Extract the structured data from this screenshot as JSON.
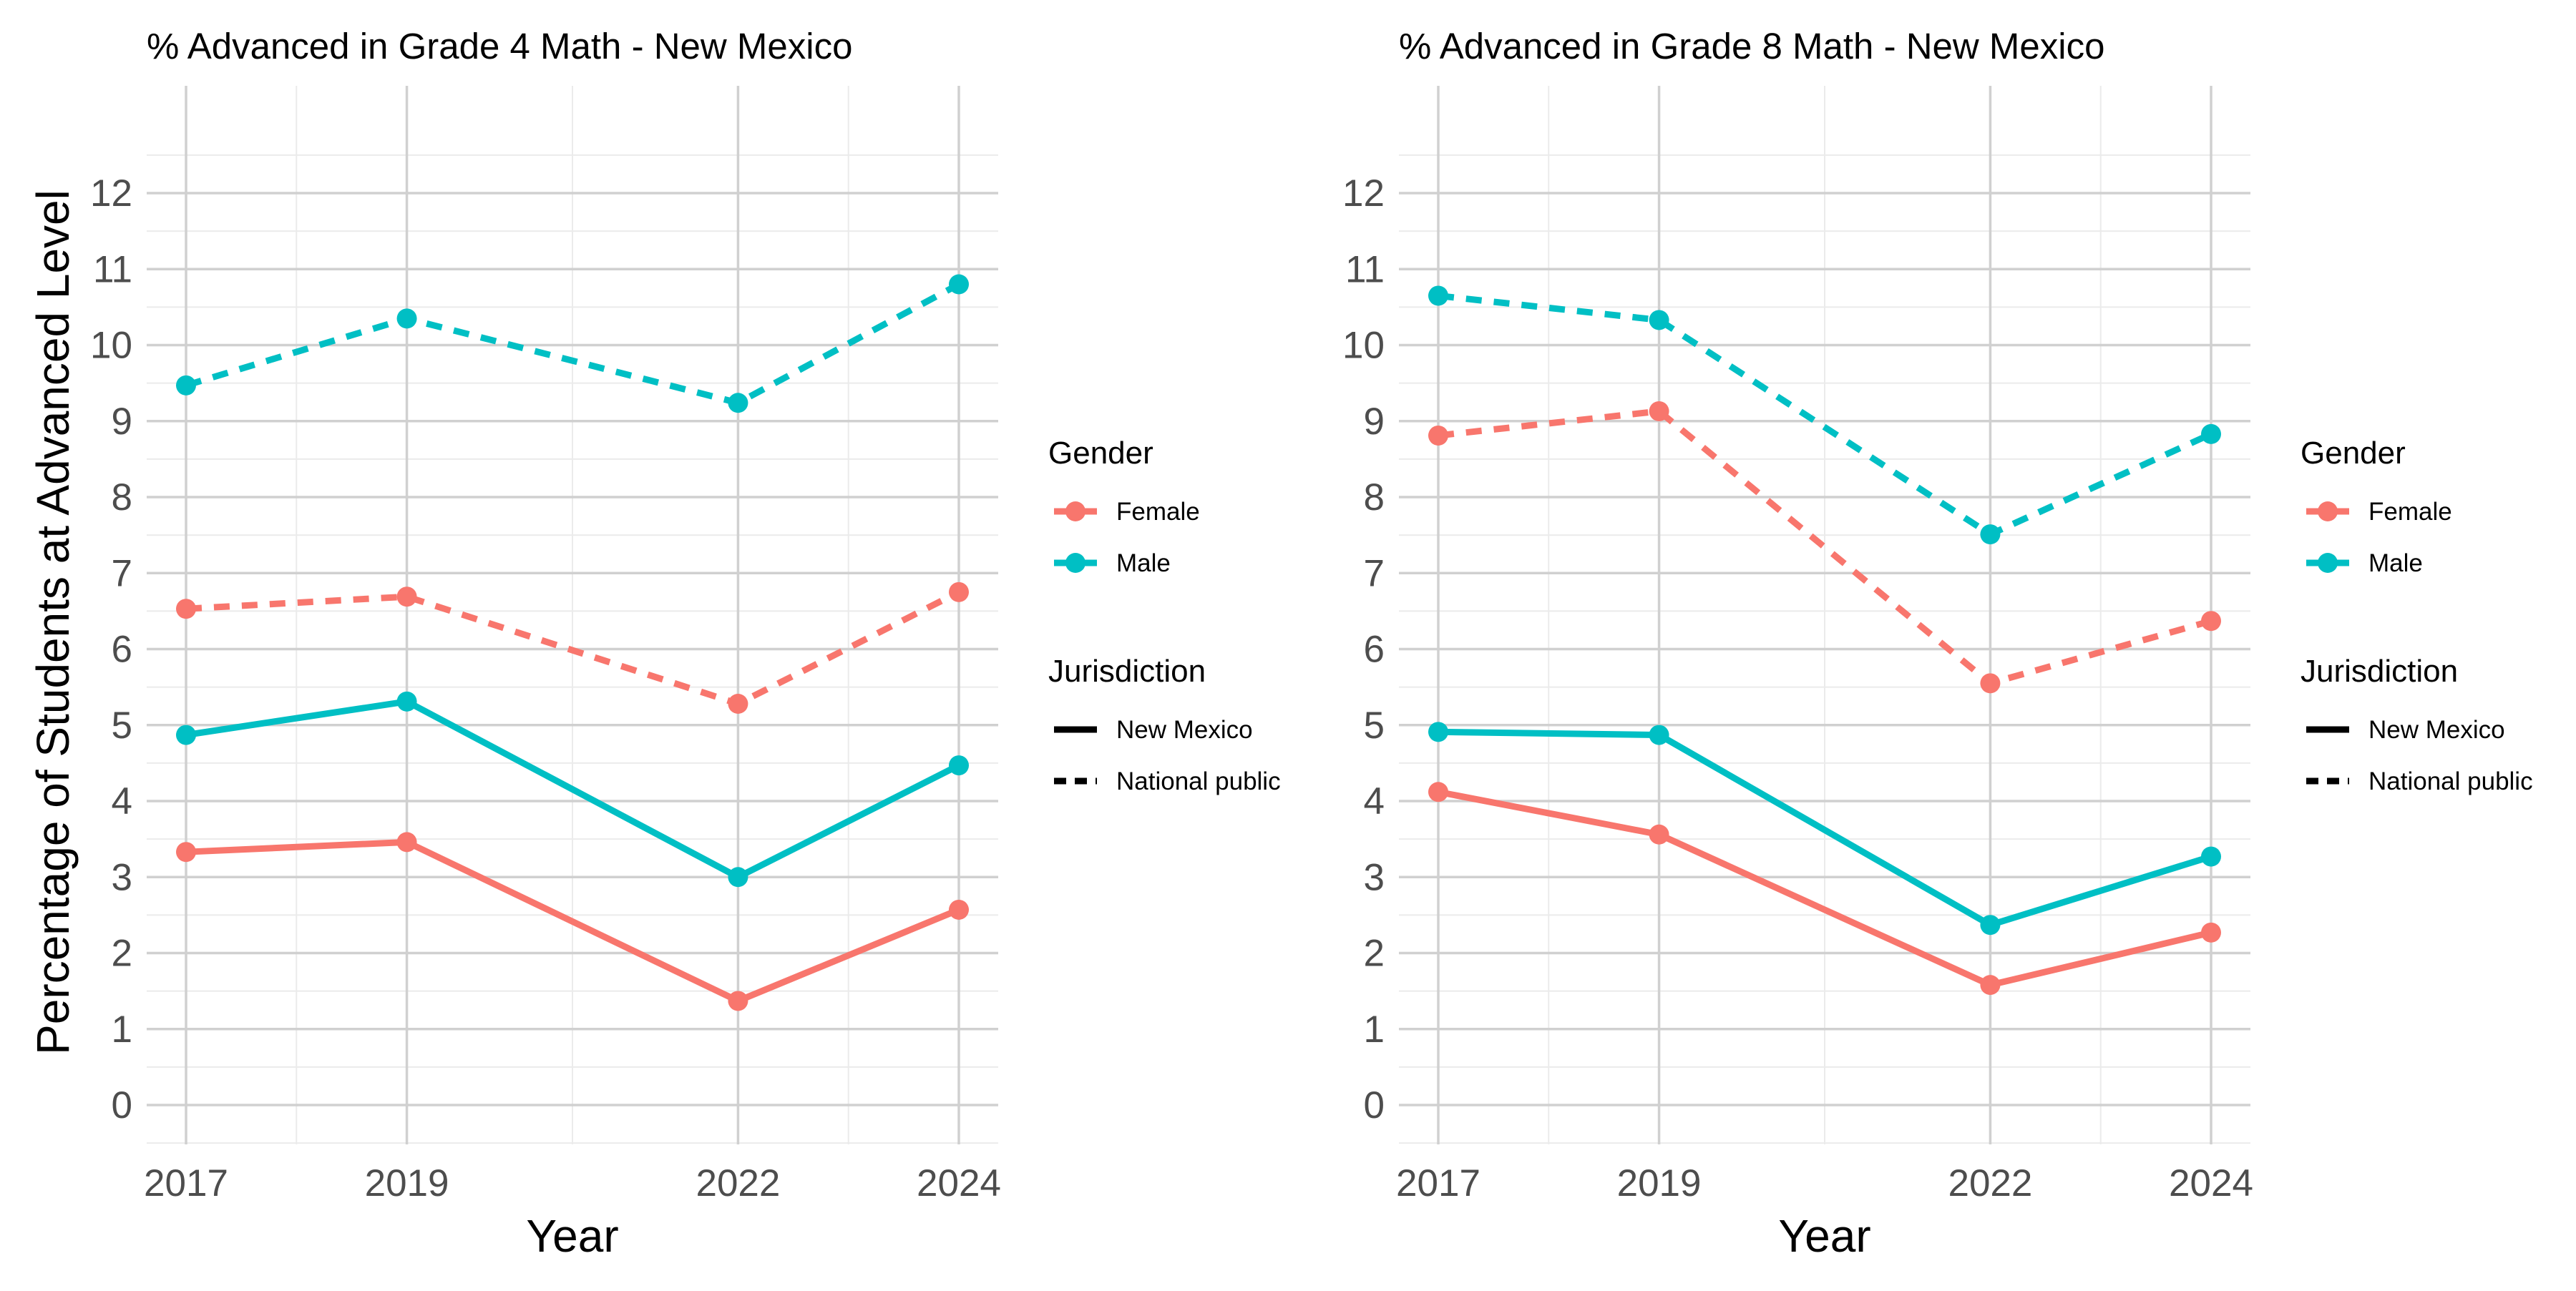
{
  "ylabel": "Percentage of Students at Advanced Level",
  "legend": {
    "gender_title": "Gender",
    "gender_entries": [
      {
        "label": "Female",
        "color": "#F8766D"
      },
      {
        "label": "Male",
        "color": "#00BFC4"
      }
    ],
    "jurisdiction_title": "Jurisdiction",
    "jurisdiction_entries": [
      {
        "label": "New Mexico",
        "linetype": "solid"
      },
      {
        "label": "National public",
        "linetype": "dashed"
      }
    ]
  },
  "chart_data": [
    {
      "type": "line",
      "title": "% Advanced in Grade 4 Math - New Mexico",
      "xlabel": "Year",
      "ylabel": "Percentage of Students at Advanced Level",
      "x": [
        2017,
        2019,
        2022,
        2024
      ],
      "xlim": [
        2017,
        2024
      ],
      "ylim": [
        0,
        12
      ],
      "yticks": [
        0,
        1,
        2,
        3,
        4,
        5,
        6,
        7,
        8,
        9,
        10,
        11,
        12
      ],
      "grid": true,
      "legend_position": "right",
      "series": [
        {
          "gender": "Female",
          "jurisdiction": "New Mexico",
          "color": "#F8766D",
          "linetype": "solid",
          "values": [
            3.33,
            3.46,
            1.37,
            2.57
          ]
        },
        {
          "gender": "Male",
          "jurisdiction": "New Mexico",
          "color": "#00BFC4",
          "linetype": "solid",
          "values": [
            4.87,
            5.31,
            3.0,
            4.47
          ]
        },
        {
          "gender": "Female",
          "jurisdiction": "National public",
          "color": "#F8766D",
          "linetype": "dashed",
          "values": [
            6.53,
            6.69,
            5.28,
            6.75
          ]
        },
        {
          "gender": "Male",
          "jurisdiction": "National public",
          "color": "#00BFC4",
          "linetype": "dashed",
          "values": [
            9.47,
            10.35,
            9.24,
            10.8
          ]
        }
      ]
    },
    {
      "type": "line",
      "title": "% Advanced in Grade 8 Math - New Mexico",
      "xlabel": "Year",
      "ylabel": "",
      "x": [
        2017,
        2019,
        2022,
        2024
      ],
      "xlim": [
        2017,
        2024
      ],
      "ylim": [
        0,
        12
      ],
      "yticks": [
        0,
        1,
        2,
        3,
        4,
        5,
        6,
        7,
        8,
        9,
        10,
        11,
        12
      ],
      "grid": true,
      "legend_position": "right",
      "series": [
        {
          "gender": "Female",
          "jurisdiction": "New Mexico",
          "color": "#F8766D",
          "linetype": "solid",
          "values": [
            4.12,
            3.56,
            1.58,
            2.27
          ]
        },
        {
          "gender": "Male",
          "jurisdiction": "New Mexico",
          "color": "#00BFC4",
          "linetype": "solid",
          "values": [
            4.91,
            4.87,
            2.37,
            3.27
          ]
        },
        {
          "gender": "Female",
          "jurisdiction": "National public",
          "color": "#F8766D",
          "linetype": "dashed",
          "values": [
            8.81,
            9.13,
            5.55,
            6.37
          ]
        },
        {
          "gender": "Male",
          "jurisdiction": "National public",
          "color": "#00BFC4",
          "linetype": "dashed",
          "values": [
            10.65,
            10.33,
            7.51,
            8.83
          ]
        }
      ]
    }
  ]
}
